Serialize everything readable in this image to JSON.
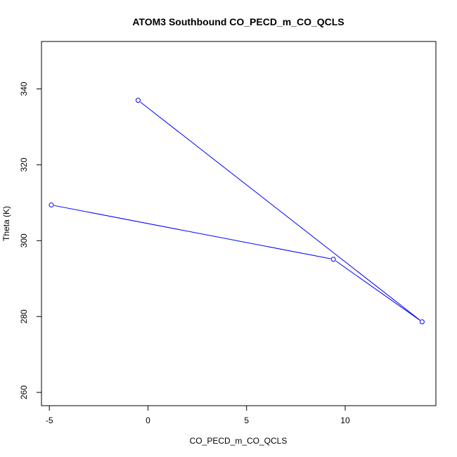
{
  "chart_data": {
    "type": "line",
    "title": "ATOM3 Southbound CO_PECD_m_CO_QCLS",
    "xlabel": "CO_PECD_m_CO_QCLS",
    "ylabel": "Theta (K)",
    "xlim": [
      -5.4,
      14.6
    ],
    "ylim": [
      256.5,
      352.5
    ],
    "xticks": [
      -5,
      0,
      5,
      10
    ],
    "xtick_labels": [
      "-5",
      "0",
      "5",
      "10"
    ],
    "yticks": [
      260,
      280,
      300,
      320,
      340
    ],
    "ytick_labels": [
      "260",
      "280",
      "300",
      "320",
      "340"
    ],
    "grid": false,
    "series": [
      {
        "color": "#0000ff",
        "marker": "open-circle",
        "x": [
          -0.5,
          13.9,
          9.4,
          -4.9
        ],
        "y": [
          337.0,
          278.6,
          295.1,
          309.4
        ]
      }
    ]
  }
}
